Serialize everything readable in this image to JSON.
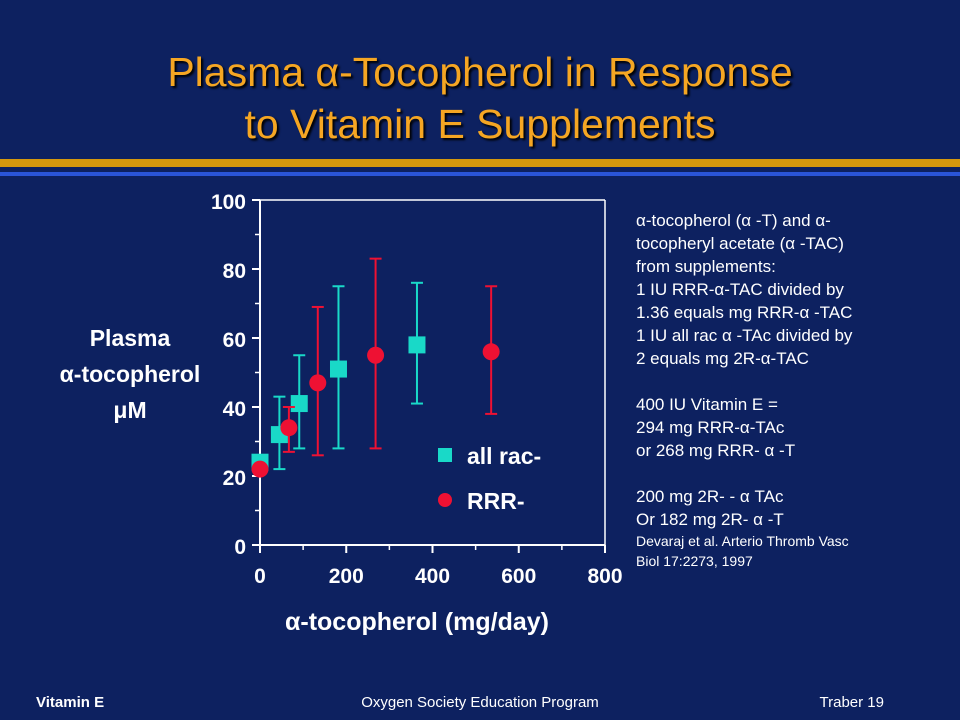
{
  "title": {
    "line1": "Plasma α-Tocopherol in Response",
    "line2": "to Vitamin E Supplements"
  },
  "colors": {
    "background": "#0d2160",
    "title": "#f5a623",
    "all_rac": "#19d9c8",
    "rrr": "#ee1133"
  },
  "chart_data": {
    "type": "scatter",
    "xlabel": "α-tocopherol (mg/day)",
    "ylabel": [
      "Plasma",
      "α-tocopherol",
      "μM"
    ],
    "xlim": [
      0,
      800
    ],
    "ylim": [
      0,
      100
    ],
    "xticks": [
      "0",
      "200",
      "400",
      "600",
      "800"
    ],
    "yticks": [
      "0",
      "20",
      "40",
      "60",
      "80",
      "100"
    ],
    "grid": false,
    "legend_position": "bottom-right",
    "series": [
      {
        "name": "all rac-",
        "marker": "square",
        "color": "#19d9c8",
        "points": [
          {
            "x": 0,
            "y": 24,
            "low": 24,
            "high": 24
          },
          {
            "x": 45,
            "y": 32,
            "low": 22,
            "high": 43
          },
          {
            "x": 91,
            "y": 41,
            "low": 28,
            "high": 55
          },
          {
            "x": 182,
            "y": 51,
            "low": 28,
            "high": 75
          },
          {
            "x": 364,
            "y": 58,
            "low": 41,
            "high": 76
          }
        ]
      },
      {
        "name": "RRR-",
        "marker": "circle",
        "color": "#ee1133",
        "points": [
          {
            "x": 0,
            "y": 22,
            "low": 22,
            "high": 22
          },
          {
            "x": 67,
            "y": 34,
            "low": 27,
            "high": 40
          },
          {
            "x": 134,
            "y": 47,
            "low": 26,
            "high": 69
          },
          {
            "x": 268,
            "y": 55,
            "low": 28,
            "high": 83
          },
          {
            "x": 536,
            "y": 56,
            "low": 38,
            "high": 75
          }
        ]
      }
    ]
  },
  "notes": {
    "line1": "α-tocopherol (α -T) and α-",
    "line2": "tocopheryl acetate (α -TAC)",
    "line3": "from supplements:",
    "line4": "1 IU RRR-α-TAC divided by",
    "line5": "1.36 equals mg RRR-α -TAC",
    "line6": "1 IU all rac α -TAc divided by",
    "line7": "2 equals mg 2R-α-TAC",
    "line8": "400 IU Vitamin E =",
    "line9": "294 mg RRR-α-TAc",
    "line10": "or 268 mg RRR- α -T",
    "line11": "200 mg 2R- - α TAc",
    "line12": "Or 182 mg 2R- α -T",
    "cite1": "Devaraj et al.  Arterio Thromb Vasc",
    "cite2": "Biol 17:2273, 1997"
  },
  "footer": {
    "left": "Vitamin E",
    "center": "Oxygen Society Education Program",
    "right": "Traber 19"
  }
}
